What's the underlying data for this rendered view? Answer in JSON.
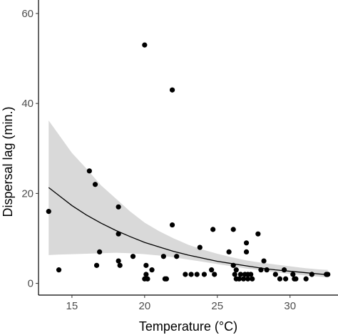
{
  "chart_data": {
    "type": "scatter",
    "title": "",
    "xlabel": "Temperature (°C)",
    "ylabel": "Dispersal lag (min.)",
    "xlim": [
      12.7,
      33.3
    ],
    "ylim": [
      -2.6,
      63
    ],
    "x_ticks": [
      15,
      20,
      25,
      30
    ],
    "y_ticks": [
      0,
      20,
      40,
      60
    ],
    "x_tick_labels": [
      "15",
      "20",
      "25",
      "30"
    ],
    "y_tick_labels": [
      "0",
      "20",
      "40",
      "60"
    ],
    "grid": false,
    "legend": "none",
    "colors": {
      "points": "#000000",
      "fit": "#000000",
      "band": "#d9d9d9",
      "axis": "#000000",
      "tick_text": "#4d4d4d"
    },
    "points": [
      {
        "x": 13.4,
        "y": 16
      },
      {
        "x": 14.1,
        "y": 3
      },
      {
        "x": 16.2,
        "y": 25
      },
      {
        "x": 16.6,
        "y": 22
      },
      {
        "x": 16.7,
        "y": 4
      },
      {
        "x": 16.9,
        "y": 7
      },
      {
        "x": 18.2,
        "y": 17
      },
      {
        "x": 18.2,
        "y": 11
      },
      {
        "x": 18.2,
        "y": 5
      },
      {
        "x": 18.3,
        "y": 4
      },
      {
        "x": 19.2,
        "y": 6
      },
      {
        "x": 20.0,
        "y": 53
      },
      {
        "x": 20.0,
        "y": 1
      },
      {
        "x": 20.1,
        "y": 4
      },
      {
        "x": 20.1,
        "y": 2
      },
      {
        "x": 20.2,
        "y": 1
      },
      {
        "x": 20.5,
        "y": 3
      },
      {
        "x": 21.3,
        "y": 6
      },
      {
        "x": 21.4,
        "y": 1
      },
      {
        "x": 21.5,
        "y": 1
      },
      {
        "x": 21.9,
        "y": 43
      },
      {
        "x": 21.9,
        "y": 13
      },
      {
        "x": 22.2,
        "y": 6
      },
      {
        "x": 22.8,
        "y": 2
      },
      {
        "x": 23.2,
        "y": 2
      },
      {
        "x": 23.6,
        "y": 2
      },
      {
        "x": 23.8,
        "y": 8
      },
      {
        "x": 24.1,
        "y": 2
      },
      {
        "x": 24.6,
        "y": 3
      },
      {
        "x": 24.7,
        "y": 12
      },
      {
        "x": 24.8,
        "y": 2
      },
      {
        "x": 25.8,
        "y": 7
      },
      {
        "x": 26.1,
        "y": 12
      },
      {
        "x": 26.1,
        "y": 4
      },
      {
        "x": 26.2,
        "y": 2
      },
      {
        "x": 26.3,
        "y": 3
      },
      {
        "x": 26.3,
        "y": 1
      },
      {
        "x": 26.5,
        "y": 1
      },
      {
        "x": 26.6,
        "y": 2
      },
      {
        "x": 26.8,
        "y": 1
      },
      {
        "x": 26.9,
        "y": 2
      },
      {
        "x": 27.0,
        "y": 9
      },
      {
        "x": 27.0,
        "y": 7
      },
      {
        "x": 27.1,
        "y": 2
      },
      {
        "x": 27.1,
        "y": 1
      },
      {
        "x": 27.3,
        "y": 2
      },
      {
        "x": 27.4,
        "y": 1
      },
      {
        "x": 27.8,
        "y": 11
      },
      {
        "x": 28.0,
        "y": 3
      },
      {
        "x": 28.2,
        "y": 5
      },
      {
        "x": 28.4,
        "y": 3
      },
      {
        "x": 29.0,
        "y": 2
      },
      {
        "x": 29.3,
        "y": 1
      },
      {
        "x": 29.6,
        "y": 3
      },
      {
        "x": 29.7,
        "y": 1
      },
      {
        "x": 30.2,
        "y": 2
      },
      {
        "x": 30.3,
        "y": 1
      },
      {
        "x": 30.4,
        "y": 1
      },
      {
        "x": 31.1,
        "y": 1
      },
      {
        "x": 31.5,
        "y": 2
      },
      {
        "x": 32.5,
        "y": 2
      },
      {
        "x": 32.6,
        "y": 2
      }
    ],
    "fit": {
      "x": [
        13.4,
        14.0,
        15.0,
        16.0,
        17.0,
        18.0,
        19.0,
        20.0,
        21.0,
        22.0,
        23.0,
        24.0,
        25.0,
        26.0,
        27.0,
        28.0,
        29.0,
        30.0,
        31.0,
        32.0,
        32.6
      ],
      "y": [
        21.3,
        19.8,
        17.3,
        15.2,
        13.4,
        11.8,
        10.4,
        9.1,
        8.1,
        7.1,
        6.3,
        5.6,
        4.9,
        4.4,
        3.9,
        3.4,
        3.0,
        2.7,
        2.4,
        2.1,
        1.95
      ],
      "lower": [
        6.3,
        6.4,
        6.5,
        6.6,
        6.7,
        6.8,
        6.7,
        6.5,
        6.2,
        5.8,
        5.3,
        4.8,
        4.3,
        3.8,
        3.3,
        2.9,
        2.5,
        2.1,
        1.8,
        1.5,
        1.3
      ],
      "upper": [
        36.2,
        33.5,
        29.0,
        25.5,
        21.8,
        18.9,
        16.0,
        13.5,
        11.6,
        10.0,
        8.6,
        7.5,
        6.6,
        5.8,
        5.1,
        4.6,
        4.2,
        3.8,
        3.4,
        3.1,
        3.0
      ]
    }
  }
}
